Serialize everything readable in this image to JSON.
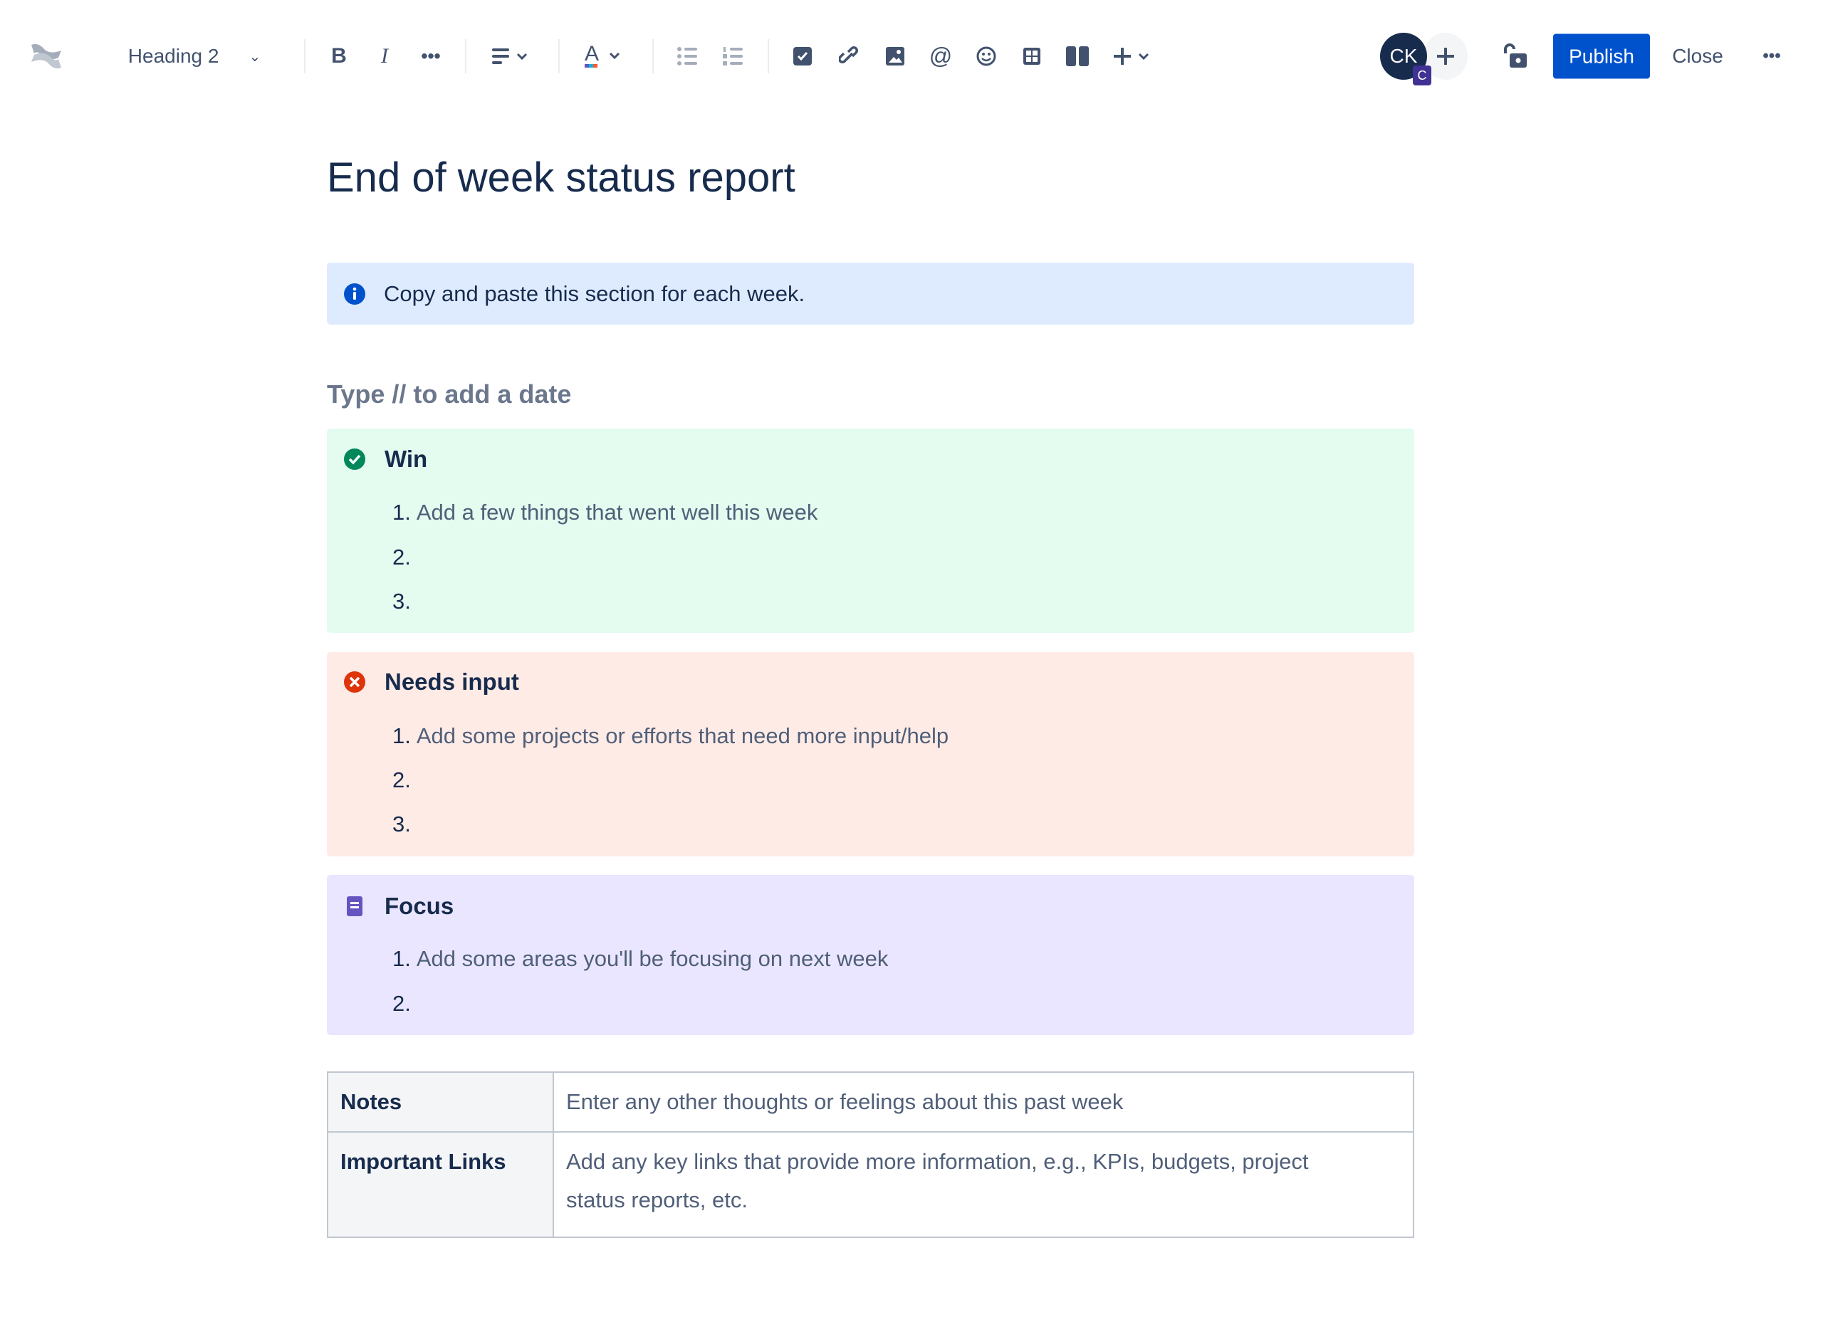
{
  "toolbar": {
    "text_style": "Heading 2",
    "publish_label": "Publish",
    "close_label": "Close",
    "avatar_initials": "CK",
    "avatar_badge": "C",
    "icons": [
      "confluence-logo",
      "chevron-down-icon",
      "bold-icon",
      "italic-icon",
      "more-formatting-icon",
      "align-icon",
      "text-color-icon",
      "bullet-list-icon",
      "numbered-list-icon",
      "task-icon",
      "link-icon",
      "image-icon",
      "mention-icon",
      "emoji-icon",
      "table-icon",
      "layout-icon",
      "insert-icon",
      "lock-icon",
      "more-icon"
    ]
  },
  "page": {
    "title": "End of week status report",
    "info_text": "Copy and paste this section for each week.",
    "date_placeholder": "Type // to add a date",
    "panels": [
      {
        "type": "success",
        "title": "Win",
        "color": "#E3FCEF",
        "icon_color": "#00875A",
        "items": [
          "Add a few things that went well this week",
          "",
          ""
        ]
      },
      {
        "type": "error",
        "title": "Needs input",
        "color": "#FFEBE6",
        "icon_color": "#DE350B",
        "items": [
          "Add some projects or efforts that need more input/help",
          "",
          ""
        ]
      },
      {
        "type": "note",
        "title": "Focus",
        "color": "#EAE6FF",
        "icon_color": "#6554C0",
        "items": [
          "Add some areas you'll be focusing on next week",
          ""
        ]
      }
    ],
    "table": [
      {
        "header": "Notes",
        "value": "Enter any other thoughts or feelings about this past week"
      },
      {
        "header": "Important Links",
        "value": "Add any key links that provide more information, e.g., KPIs, budgets, project status reports, etc."
      }
    ]
  },
  "colors": {
    "accent": "#0052CC",
    "info_bg": "#DEEBFF",
    "text": "#172B4D"
  }
}
